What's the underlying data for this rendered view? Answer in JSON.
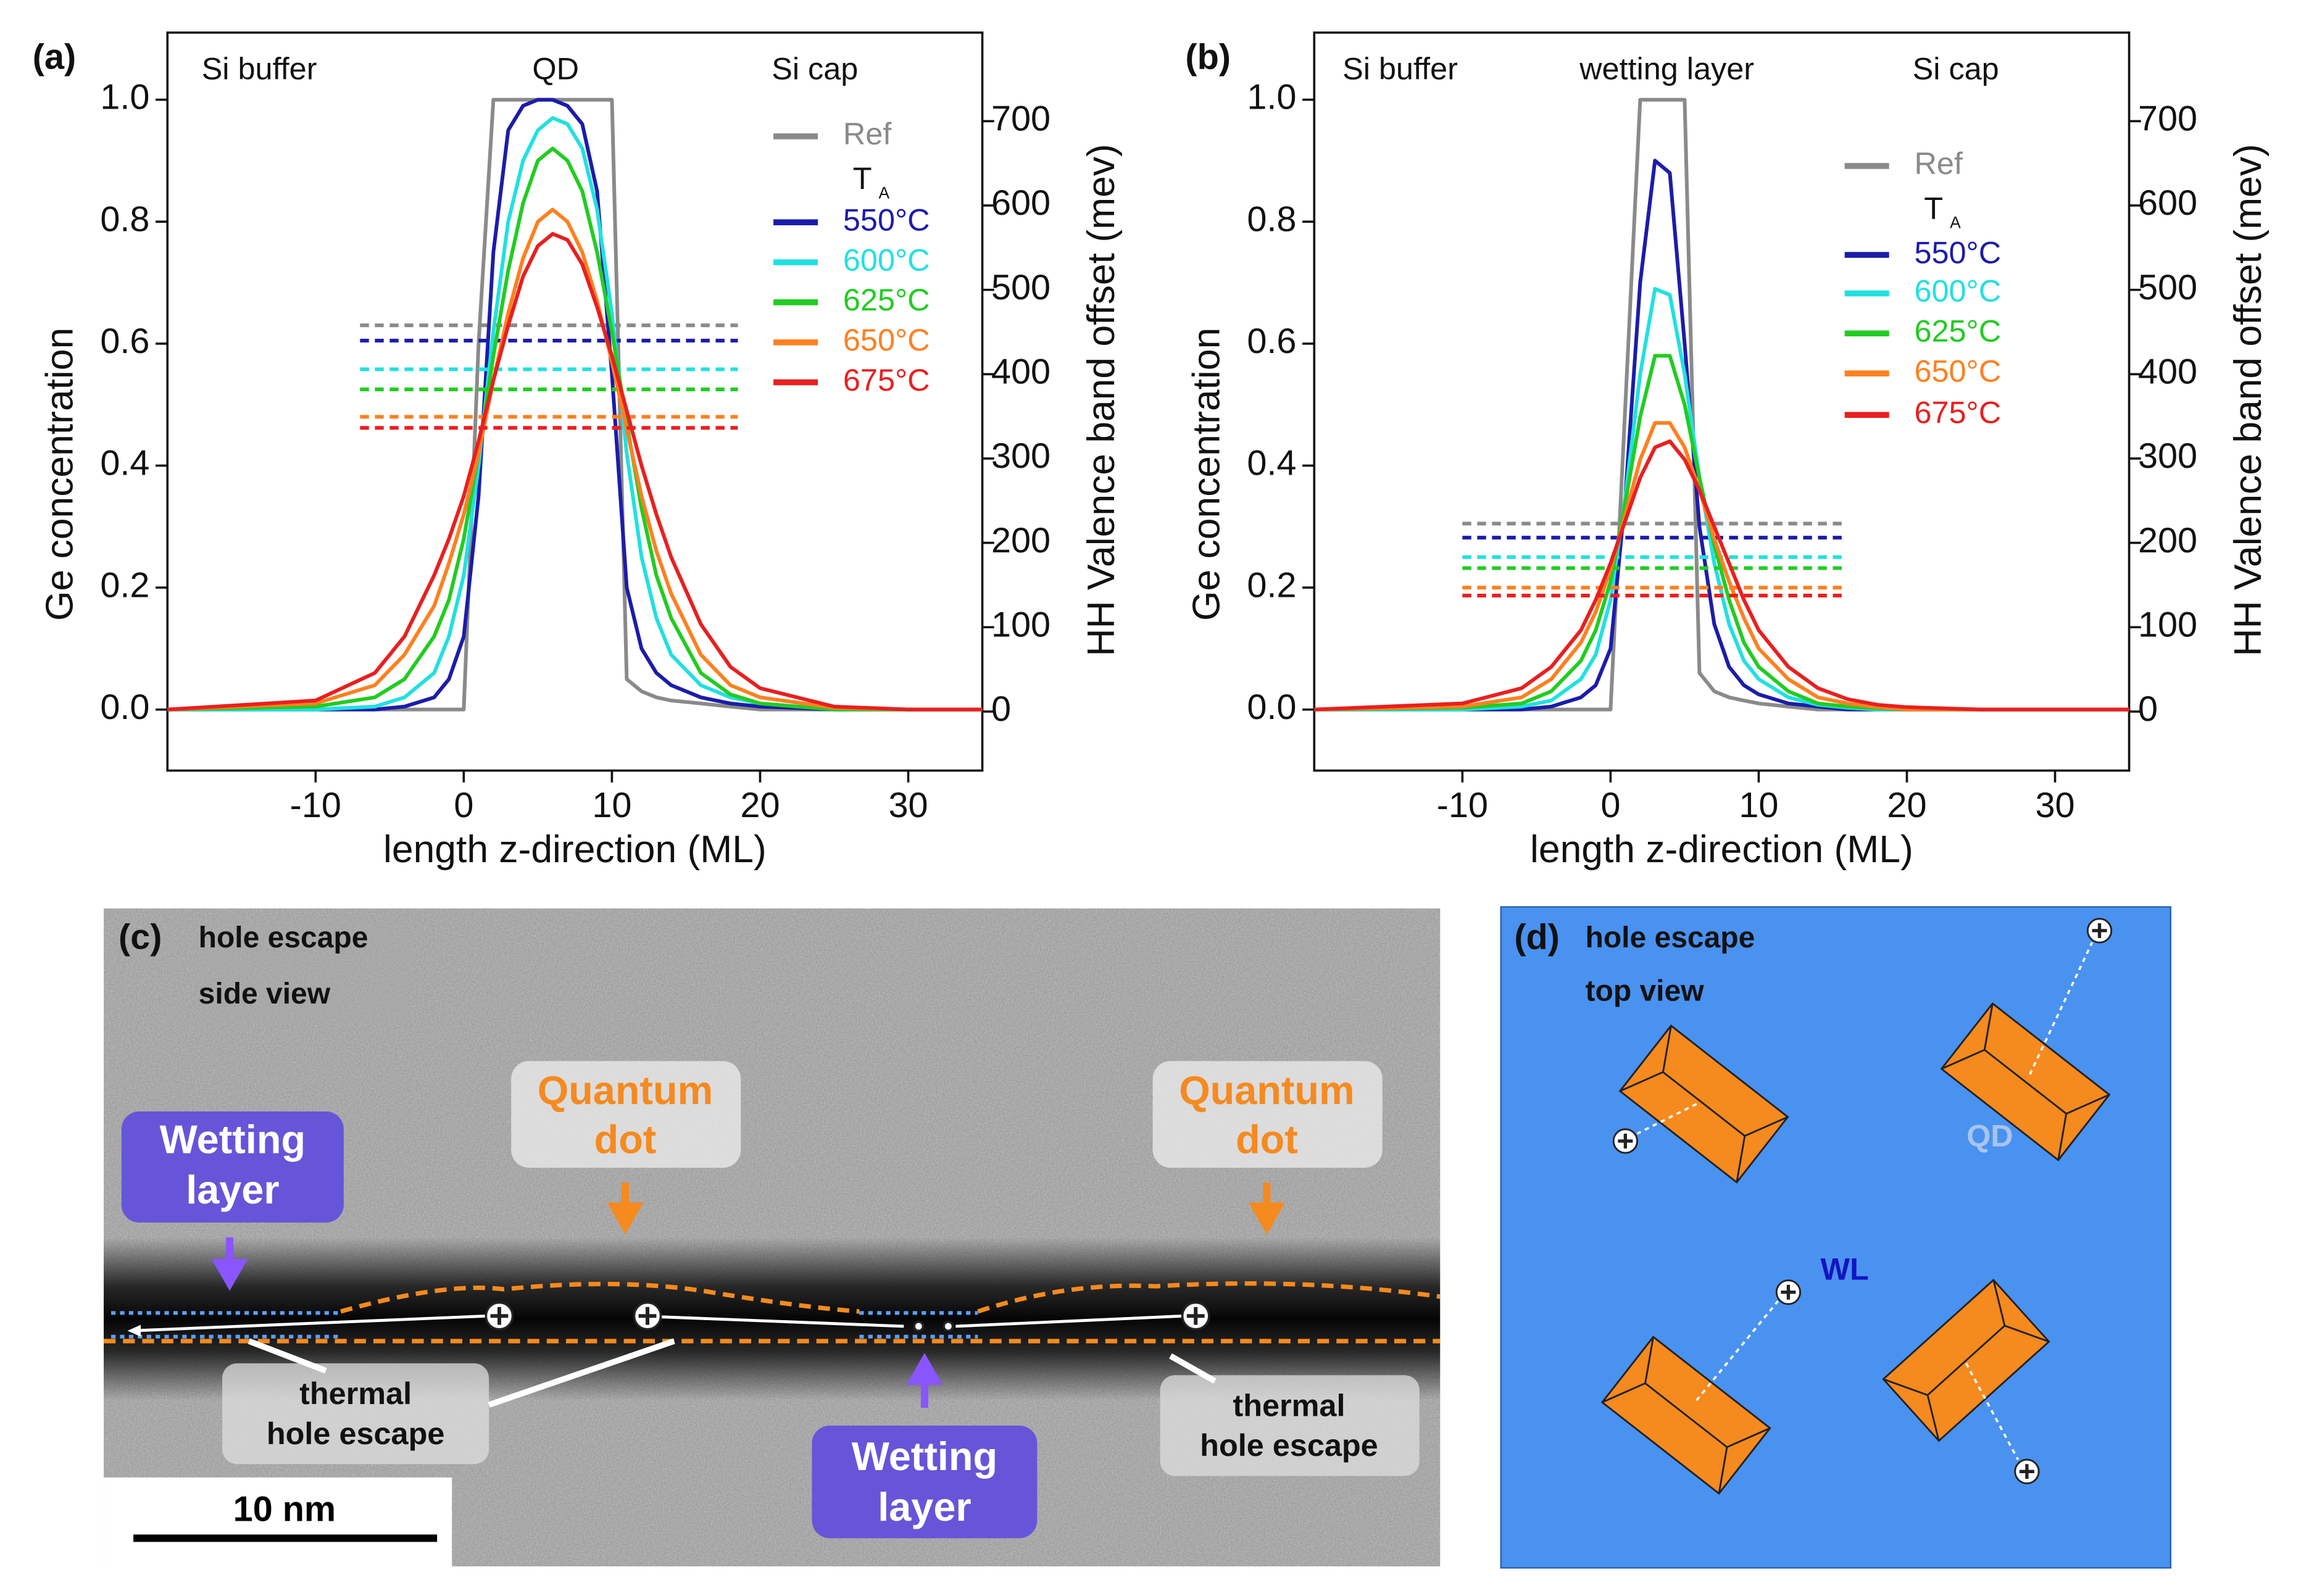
{
  "chart_data": [
    {
      "type": "line",
      "panel_label": "(a)",
      "x_label": "length z-direction (ML)",
      "y_label": "Ge concentration",
      "y2_label": "HH Valence band offset (mev)",
      "annotations": [
        "Si buffer",
        "QD",
        "Si cap"
      ],
      "legend_title": {
        "main": "T",
        "sub": "A"
      },
      "xlim": [
        -20,
        35
      ],
      "xticks": [
        -10,
        0,
        10,
        20,
        30
      ],
      "ylim": [
        -0.1,
        1.11
      ],
      "yticks": [
        {
          "value": 0,
          "label": "0.0"
        },
        0.2,
        0.4,
        0.6,
        0.8,
        {
          "value": 1,
          "label": "1.0"
        }
      ],
      "y2lim": [
        -70,
        805
      ],
      "y2ticks": [
        0,
        100,
        200,
        300,
        400,
        500,
        600,
        700
      ],
      "level_x": [
        -7,
        18.5
      ],
      "x": [
        -20,
        -10,
        -6,
        -4,
        -2,
        -1,
        0,
        1,
        2,
        3,
        4,
        5,
        6,
        7,
        8,
        9,
        10,
        11,
        12,
        13,
        14,
        16,
        18,
        20,
        25,
        30,
        35
      ],
      "series": [
        {
          "name": "Ref",
          "color": "#8a8a8a",
          "level": 0.63,
          "values": [
            0,
            0,
            0,
            0,
            0,
            0,
            0,
            0.6,
            1,
            1,
            1,
            1,
            1,
            1,
            1,
            1,
            1,
            0.05,
            0.03,
            0.02,
            0.015,
            0.01,
            0.005,
            0,
            0,
            0,
            0
          ]
        },
        {
          "name": "550°C",
          "color": "#1c1caa",
          "level": 0.605,
          "values": [
            0,
            0,
            0,
            0.005,
            0.02,
            0.05,
            0.12,
            0.35,
            0.75,
            0.95,
            0.99,
            1,
            1,
            0.99,
            0.96,
            0.85,
            0.55,
            0.2,
            0.1,
            0.06,
            0.04,
            0.02,
            0.01,
            0.005,
            0,
            0,
            0
          ]
        },
        {
          "name": "600°C",
          "color": "#22e0e0",
          "level": 0.558,
          "values": [
            0,
            0,
            0.005,
            0.02,
            0.06,
            0.12,
            0.22,
            0.4,
            0.62,
            0.8,
            0.9,
            0.95,
            0.97,
            0.96,
            0.92,
            0.82,
            0.65,
            0.42,
            0.25,
            0.15,
            0.09,
            0.04,
            0.02,
            0.01,
            0,
            0,
            0
          ]
        },
        {
          "name": "625°C",
          "color": "#22cc22",
          "level": 0.525,
          "values": [
            0,
            0.005,
            0.02,
            0.05,
            0.12,
            0.18,
            0.28,
            0.42,
            0.58,
            0.72,
            0.83,
            0.9,
            0.92,
            0.9,
            0.85,
            0.75,
            0.62,
            0.47,
            0.33,
            0.22,
            0.15,
            0.06,
            0.025,
            0.01,
            0,
            0,
            0
          ]
        },
        {
          "name": "650°C",
          "color": "#ff8020",
          "level": 0.48,
          "values": [
            0,
            0.01,
            0.04,
            0.09,
            0.17,
            0.24,
            0.32,
            0.42,
            0.54,
            0.65,
            0.74,
            0.8,
            0.82,
            0.8,
            0.75,
            0.67,
            0.57,
            0.46,
            0.35,
            0.26,
            0.19,
            0.09,
            0.04,
            0.02,
            0.003,
            0,
            0
          ]
        },
        {
          "name": "675°C",
          "color": "#e82020",
          "level": 0.462,
          "values": [
            0,
            0.015,
            0.06,
            0.12,
            0.22,
            0.28,
            0.35,
            0.44,
            0.54,
            0.63,
            0.71,
            0.76,
            0.78,
            0.77,
            0.73,
            0.66,
            0.58,
            0.49,
            0.4,
            0.32,
            0.25,
            0.14,
            0.07,
            0.035,
            0.005,
            0,
            0
          ]
        }
      ]
    },
    {
      "type": "line",
      "panel_label": "(b)",
      "x_label": "length z-direction (ML)",
      "y_label": "Ge concentration",
      "y2_label": "HH Valence band offset (mev)",
      "annotations": [
        "Si buffer",
        "wetting layer",
        "Si cap"
      ],
      "legend_title": {
        "main": "T",
        "sub": "A"
      },
      "xlim": [
        -20,
        35
      ],
      "xticks": [
        -10,
        0,
        10,
        20,
        30
      ],
      "ylim": [
        -0.1,
        1.11
      ],
      "yticks": [
        {
          "value": 0,
          "label": "0.0"
        },
        0.2,
        0.4,
        0.6,
        0.8,
        {
          "value": 1,
          "label": "1.0"
        }
      ],
      "y2lim": [
        -70,
        805
      ],
      "y2ticks": [
        0,
        100,
        200,
        300,
        400,
        500,
        600,
        700
      ],
      "level_x": [
        -10,
        16
      ],
      "x": [
        -20,
        -10,
        -6,
        -4,
        -2,
        -1,
        0,
        1,
        2,
        3,
        4,
        5,
        6,
        7,
        8,
        9,
        10,
        12,
        14,
        16,
        18,
        20,
        25,
        35
      ],
      "series": [
        {
          "name": "Ref",
          "color": "#8a8a8a",
          "level": 0.305,
          "values": [
            0,
            0,
            0,
            0,
            0,
            0,
            0,
            0.5,
            1,
            1,
            1,
            1,
            0.06,
            0.03,
            0.02,
            0.015,
            0.01,
            0.005,
            0,
            0,
            0,
            0,
            0,
            0
          ]
        },
        {
          "name": "550°C",
          "color": "#1c1caa",
          "level": 0.282,
          "values": [
            0,
            0,
            0,
            0.005,
            0.02,
            0.04,
            0.1,
            0.35,
            0.7,
            0.9,
            0.88,
            0.6,
            0.3,
            0.14,
            0.07,
            0.04,
            0.025,
            0.01,
            0.005,
            0,
            0,
            0,
            0,
            0
          ]
        },
        {
          "name": "600°C",
          "color": "#22e0e0",
          "level": 0.25,
          "values": [
            0,
            0,
            0.005,
            0.015,
            0.05,
            0.09,
            0.18,
            0.35,
            0.55,
            0.69,
            0.68,
            0.55,
            0.38,
            0.24,
            0.14,
            0.08,
            0.05,
            0.02,
            0.008,
            0.003,
            0,
            0,
            0,
            0
          ]
        },
        {
          "name": "625°C",
          "color": "#22cc22",
          "level": 0.232,
          "values": [
            0,
            0.003,
            0.01,
            0.03,
            0.08,
            0.13,
            0.21,
            0.34,
            0.48,
            0.58,
            0.58,
            0.5,
            0.38,
            0.27,
            0.18,
            0.11,
            0.07,
            0.03,
            0.01,
            0.005,
            0.002,
            0,
            0,
            0
          ]
        },
        {
          "name": "650°C",
          "color": "#ff8020",
          "level": 0.2,
          "values": [
            0,
            0.005,
            0.02,
            0.05,
            0.11,
            0.16,
            0.23,
            0.32,
            0.41,
            0.47,
            0.47,
            0.43,
            0.36,
            0.28,
            0.21,
            0.15,
            0.1,
            0.05,
            0.02,
            0.01,
            0.004,
            0,
            0,
            0
          ]
        },
        {
          "name": "675°C",
          "color": "#e82020",
          "level": 0.187,
          "values": [
            0,
            0.01,
            0.035,
            0.07,
            0.13,
            0.18,
            0.24,
            0.31,
            0.38,
            0.43,
            0.44,
            0.41,
            0.36,
            0.3,
            0.24,
            0.18,
            0.13,
            0.07,
            0.035,
            0.017,
            0.008,
            0.004,
            0,
            0
          ]
        }
      ]
    }
  ],
  "panel_c": {
    "label": "(c)",
    "title_lines": [
      "hole escape",
      "side view"
    ],
    "quantum_dot": [
      [
        "Quantum",
        "dot"
      ],
      [
        "Quantum",
        "dot"
      ]
    ],
    "wetting_layer": [
      [
        "Wetting",
        "layer"
      ],
      [
        "Wetting",
        "layer"
      ]
    ],
    "thermal_escape": [
      [
        "thermal",
        "hole escape"
      ],
      [
        "thermal",
        "hole escape"
      ]
    ],
    "scale_bar": "10 nm"
  },
  "panel_d": {
    "label": "(d)",
    "title_lines": [
      "hole escape",
      "top view"
    ],
    "qd": "QD",
    "wl": "WL"
  }
}
